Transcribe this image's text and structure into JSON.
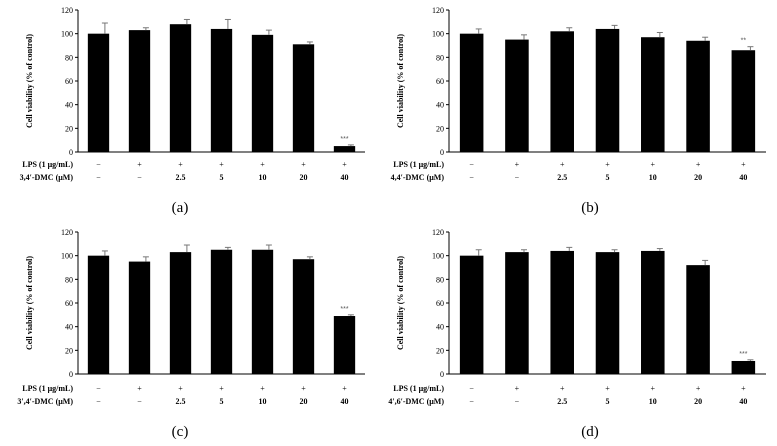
{
  "figure": {
    "shared": {
      "ylabel": "Cell viability (% of control)",
      "yticks": [
        "0",
        "20",
        "40",
        "60",
        "80",
        "100",
        "120"
      ],
      "lps_label": "LPS (1 μg/mL)",
      "lps_row": [
        "−",
        "+",
        "+",
        "+",
        "+",
        "+",
        "+"
      ],
      "conc_row": [
        "−",
        "−",
        "2.5",
        "5",
        "10",
        "20",
        "40"
      ]
    }
  },
  "chart_data": [
    {
      "type": "bar",
      "panel_label": "(a)",
      "compound_label": "3,4′-DMC (μM)",
      "categories": [
        "−/−",
        "+/−",
        "+/2.5",
        "+/5",
        "+/10",
        "+/20",
        "+/40"
      ],
      "values": [
        100,
        103,
        108,
        104,
        99,
        91,
        5
      ],
      "errors": [
        9,
        2,
        4,
        8,
        4,
        2,
        1
      ],
      "significance": [
        "",
        "",
        "",
        "",
        "",
        "",
        "***"
      ],
      "ylabel": "Cell viability (% of control)",
      "ylim": [
        0,
        120
      ],
      "grid": false
    },
    {
      "type": "bar",
      "panel_label": "(b)",
      "compound_label": "4,4′-DMC (μM)",
      "categories": [
        "−/−",
        "+/−",
        "+/2.5",
        "+/5",
        "+/10",
        "+/20",
        "+/40"
      ],
      "values": [
        100,
        95,
        102,
        104,
        97,
        94,
        86
      ],
      "errors": [
        4,
        4,
        3,
        3,
        4,
        3,
        3
      ],
      "significance": [
        "",
        "",
        "",
        "",
        "",
        "",
        "**"
      ],
      "ylabel": "Cell viability (% of control)",
      "ylim": [
        0,
        120
      ],
      "grid": false
    },
    {
      "type": "bar",
      "panel_label": "(c)",
      "compound_label": "3′,4′-DMC (μM)",
      "categories": [
        "−/−",
        "+/−",
        "+/2.5",
        "+/5",
        "+/10",
        "+/20",
        "+/40"
      ],
      "values": [
        100,
        95,
        103,
        105,
        105,
        97,
        49
      ],
      "errors": [
        4,
        4,
        6,
        2,
        4,
        2,
        1
      ],
      "significance": [
        "",
        "",
        "",
        "",
        "",
        "",
        "***"
      ],
      "ylabel": "Cell viability (% of control)",
      "ylim": [
        0,
        120
      ],
      "grid": false
    },
    {
      "type": "bar",
      "panel_label": "(d)",
      "compound_label": "4′,6′-DMC (μM)",
      "categories": [
        "−/−",
        "+/−",
        "+/2.5",
        "+/5",
        "+/10",
        "+/20",
        "+/40"
      ],
      "values": [
        100,
        103,
        104,
        103,
        104,
        92,
        11
      ],
      "errors": [
        5,
        2,
        3,
        2,
        2,
        4,
        1
      ],
      "significance": [
        "",
        "",
        "",
        "",
        "",
        "",
        "***"
      ],
      "ylabel": "Cell viability (% of control)",
      "ylim": [
        0,
        120
      ],
      "grid": false
    }
  ]
}
